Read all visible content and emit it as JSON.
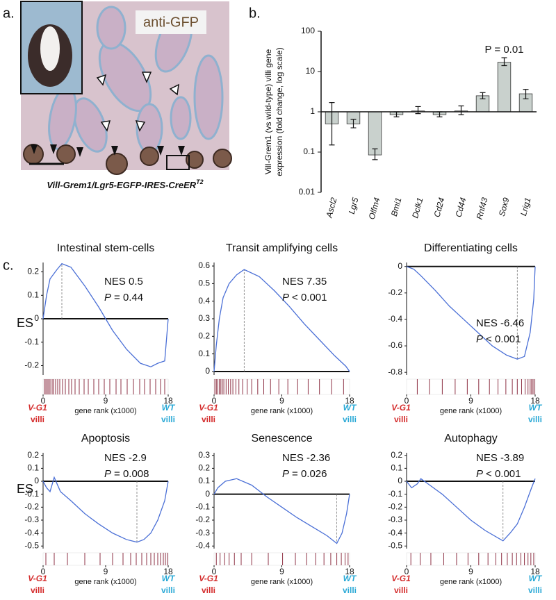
{
  "panel_labels": [
    "a.",
    "b.",
    "c."
  ],
  "panel_a": {
    "stain": "anti-GFP",
    "caption": "Vill-Grem1/Lgr5-EGFP-IRES-CreER",
    "caption_sup": "T2"
  },
  "chart_data": [
    {
      "type": "bar",
      "log_scale": true,
      "color": "#c9d1cd",
      "ylabel": [
        "Vill-Grem1 (vs wild-type) villi gene",
        "expression (fold change, log scale)"
      ],
      "categories": [
        "Ascl2",
        "Lgr5",
        "Olfm4",
        "Bmi1",
        "Dclk1",
        "Cd24",
        "Cd44",
        "Rnf43",
        "Sox9",
        "Lrig1"
      ],
      "values": [
        0.5,
        0.5,
        0.085,
        0.85,
        1.05,
        0.85,
        1.05,
        2.5,
        17,
        2.8
      ],
      "error_low": [
        0.15,
        0.4,
        0.065,
        0.75,
        0.9,
        0.75,
        0.85,
        2.1,
        14,
        2.1
      ],
      "error_high": [
        1.7,
        0.65,
        0.12,
        1.0,
        1.35,
        1.0,
        1.4,
        3.0,
        22,
        3.6
      ],
      "annotation": "P = 0.01",
      "ylim": [
        0.01,
        100
      ],
      "yticks": [
        0.01,
        0.1,
        1,
        10,
        100
      ]
    },
    {
      "type": "line",
      "title": "Intestinal stem-cells",
      "nes": "NES 0.5",
      "p_symbol": "P",
      "p_text": "= 0.44",
      "ylabel": "ES",
      "color": "#4a6fd6",
      "x": [
        0,
        0.5,
        1,
        2,
        2.7,
        4,
        6,
        8,
        10,
        12,
        14,
        15.5,
        16.5,
        17.5,
        18
      ],
      "values": [
        0,
        0.1,
        0.17,
        0.21,
        0.235,
        0.22,
        0.14,
        0.05,
        -0.05,
        -0.13,
        -0.19,
        -0.205,
        -0.19,
        -0.18,
        0
      ],
      "hits": [
        0.2,
        0.4,
        0.6,
        0.8,
        1.0,
        1.3,
        1.5,
        1.8,
        2.1,
        2.4,
        2.8,
        3.2,
        3.7,
        4.1,
        4.6,
        5.2,
        5.9,
        6.5,
        7.3,
        8.0,
        8.8,
        9.6,
        10.5,
        11.2,
        12.1,
        13.0,
        13.9,
        14.6,
        15.4,
        16.2,
        16.9,
        17.5
      ],
      "xlim": [
        0,
        18
      ],
      "xticks": [
        0,
        9,
        18
      ],
      "ylim": [
        -0.24,
        0.24
      ],
      "yticks": [
        0.2,
        0.1,
        0,
        -0.1,
        -0.2
      ],
      "xlabel": "gene rank (x1000)",
      "left_label": [
        "V-G1",
        "villi"
      ],
      "right_label": [
        "WT",
        "villi"
      ]
    },
    {
      "type": "line",
      "title": "Transit amplifying cells",
      "nes": "NES 7.35",
      "p_symbol": "P",
      "p_text": "< 0.001",
      "color": "#4a6fd6",
      "x": [
        0,
        0.3,
        0.7,
        1.2,
        2,
        3,
        4,
        6,
        8,
        10,
        12,
        14,
        16,
        17.5,
        18
      ],
      "values": [
        0,
        0.15,
        0.3,
        0.42,
        0.5,
        0.55,
        0.58,
        0.54,
        0.46,
        0.37,
        0.27,
        0.18,
        0.09,
        0.03,
        0
      ],
      "hits": [
        0.1,
        0.3,
        0.5,
        0.7,
        0.9,
        1.1,
        1.3,
        1.6,
        1.9,
        2.2,
        2.5,
        2.9,
        3.3,
        3.8,
        4.4,
        5.0,
        5.8,
        6.6,
        7.5,
        8.6,
        9.8,
        11.1,
        12.5,
        14.0,
        15.6,
        17.2
      ],
      "xlim": [
        0,
        18
      ],
      "xticks": [
        0,
        9,
        18
      ],
      "ylim": [
        -0.02,
        0.62
      ],
      "yticks": [
        0.6,
        0.5,
        0.4,
        0.3,
        0.2,
        0.1,
        0
      ],
      "xlabel": "gene rank (x1000)",
      "left_label": [
        "V-G1",
        "villi"
      ],
      "right_label": [
        "WT",
        "villi"
      ]
    },
    {
      "type": "line",
      "title": "Differentiating cells",
      "nes": "NES -6.46",
      "p_symbol": "P",
      "p_text": "< 0.001",
      "color": "#4a6fd6",
      "x": [
        0,
        1,
        2,
        4,
        6,
        8,
        10,
        12,
        14,
        15.5,
        16.5,
        17.3,
        17.8,
        18
      ],
      "values": [
        0,
        -0.02,
        -0.07,
        -0.18,
        -0.3,
        -0.4,
        -0.5,
        -0.6,
        -0.67,
        -0.7,
        -0.68,
        -0.5,
        -0.25,
        0
      ],
      "hits": [
        1.5,
        3.2,
        5.0,
        6.8,
        8.5,
        10.1,
        11.6,
        12.8,
        13.9,
        14.8,
        15.5,
        16.1,
        16.6,
        17.0,
        17.3,
        17.5,
        17.7,
        17.9
      ],
      "xlim": [
        0,
        18
      ],
      "xticks": [
        0,
        9,
        18
      ],
      "ylim": [
        -0.82,
        0.03
      ],
      "yticks": [
        0,
        -0.2,
        -0.4,
        -0.6,
        -0.8
      ],
      "xlabel": "gene rank (x1000)",
      "left_label": [
        "V-G1",
        "villi"
      ],
      "right_label": [
        "WT",
        "villi"
      ]
    },
    {
      "type": "line",
      "title": "Apoptosis",
      "nes": "NES -2.9",
      "p_symbol": "P",
      "p_text": "= 0.008",
      "ylabel": "ES",
      "color": "#4a6fd6",
      "x": [
        0,
        0.5,
        1,
        1.6,
        2.5,
        4,
        6,
        8,
        10,
        12,
        13.5,
        14.5,
        15.5,
        16.5,
        17.5,
        18
      ],
      "values": [
        0,
        -0.05,
        -0.08,
        0.03,
        -0.08,
        -0.15,
        -0.25,
        -0.33,
        -0.4,
        -0.45,
        -0.47,
        -0.45,
        -0.4,
        -0.3,
        -0.15,
        0
      ],
      "hits": [
        0.4,
        1.6,
        3.5,
        6.0,
        8.2,
        10.0,
        11.5,
        12.6,
        13.4,
        14.2,
        14.9,
        15.5,
        16.0,
        16.5,
        16.9,
        17.3,
        17.6,
        17.9
      ],
      "xlim": [
        0,
        18
      ],
      "xticks": [
        0,
        9,
        18
      ],
      "ylim": [
        -0.52,
        0.22
      ],
      "yticks": [
        0.2,
        0.1,
        0,
        -0.1,
        -0.2,
        -0.3,
        -0.4,
        -0.5
      ],
      "xlabel": "gene rank (x1000)",
      "left_label": [
        "V-G1",
        "villi"
      ],
      "right_label": [
        "WT",
        "villi"
      ]
    },
    {
      "type": "line",
      "title": "Senescence",
      "nes": "NES -2.36",
      "p_symbol": "P",
      "p_text": "= 0.026",
      "color": "#4a6fd6",
      "x": [
        0,
        0.5,
        1.5,
        3,
        5,
        7,
        9,
        11,
        13,
        15,
        16.3,
        17,
        17.6,
        18
      ],
      "values": [
        0,
        0.05,
        0.1,
        0.12,
        0.07,
        -0.02,
        -0.1,
        -0.18,
        -0.25,
        -0.32,
        -0.38,
        -0.3,
        -0.15,
        0
      ],
      "hits": [
        0.3,
        0.8,
        1.4,
        2.0,
        2.7,
        3.6,
        5.0,
        7.2,
        9.1,
        10.8,
        12.3,
        13.5,
        14.6,
        15.5,
        16.3,
        16.9,
        17.4,
        17.8
      ],
      "xlim": [
        0,
        18
      ],
      "xticks": [
        0,
        9,
        18
      ],
      "ylim": [
        -0.42,
        0.32
      ],
      "yticks": [
        0.3,
        0.2,
        0.1,
        0,
        -0.1,
        -0.2,
        -0.3,
        -0.4
      ],
      "xlabel": "gene rank (x1000)",
      "left_label": [
        "V-G1",
        "villi"
      ],
      "right_label": [
        "WT",
        "villi"
      ]
    },
    {
      "type": "line",
      "title": "Autophagy",
      "nes": "NES -3.89",
      "p_symbol": "P",
      "p_text": "< 0.001",
      "color": "#4a6fd6",
      "x": [
        0,
        0.7,
        1.5,
        2,
        3,
        5,
        7,
        9,
        11,
        13.5,
        14.5,
        15.5,
        16.5,
        17.5,
        18
      ],
      "values": [
        0,
        -0.05,
        -0.02,
        0.02,
        -0.02,
        -0.1,
        -0.2,
        -0.3,
        -0.38,
        -0.46,
        -0.4,
        -0.33,
        -0.2,
        -0.05,
        0.02
      ],
      "hits": [
        0.6,
        1.9,
        3.4,
        5.2,
        7.0,
        8.6,
        10.1,
        11.4,
        12.5,
        13.3,
        14.1,
        14.8,
        15.4,
        16.0,
        16.5,
        17.0,
        17.4,
        17.8
      ],
      "xlim": [
        0,
        18
      ],
      "xticks": [
        0,
        9,
        18
      ],
      "ylim": [
        -0.52,
        0.22
      ],
      "yticks": [
        0.2,
        0.1,
        0,
        -0.1,
        -0.2,
        -0.3,
        -0.4,
        -0.5
      ],
      "xlabel": "gene rank (x1000)",
      "left_label": [
        "V-G1",
        "villi"
      ],
      "right_label": [
        "WT",
        "villi"
      ]
    }
  ]
}
